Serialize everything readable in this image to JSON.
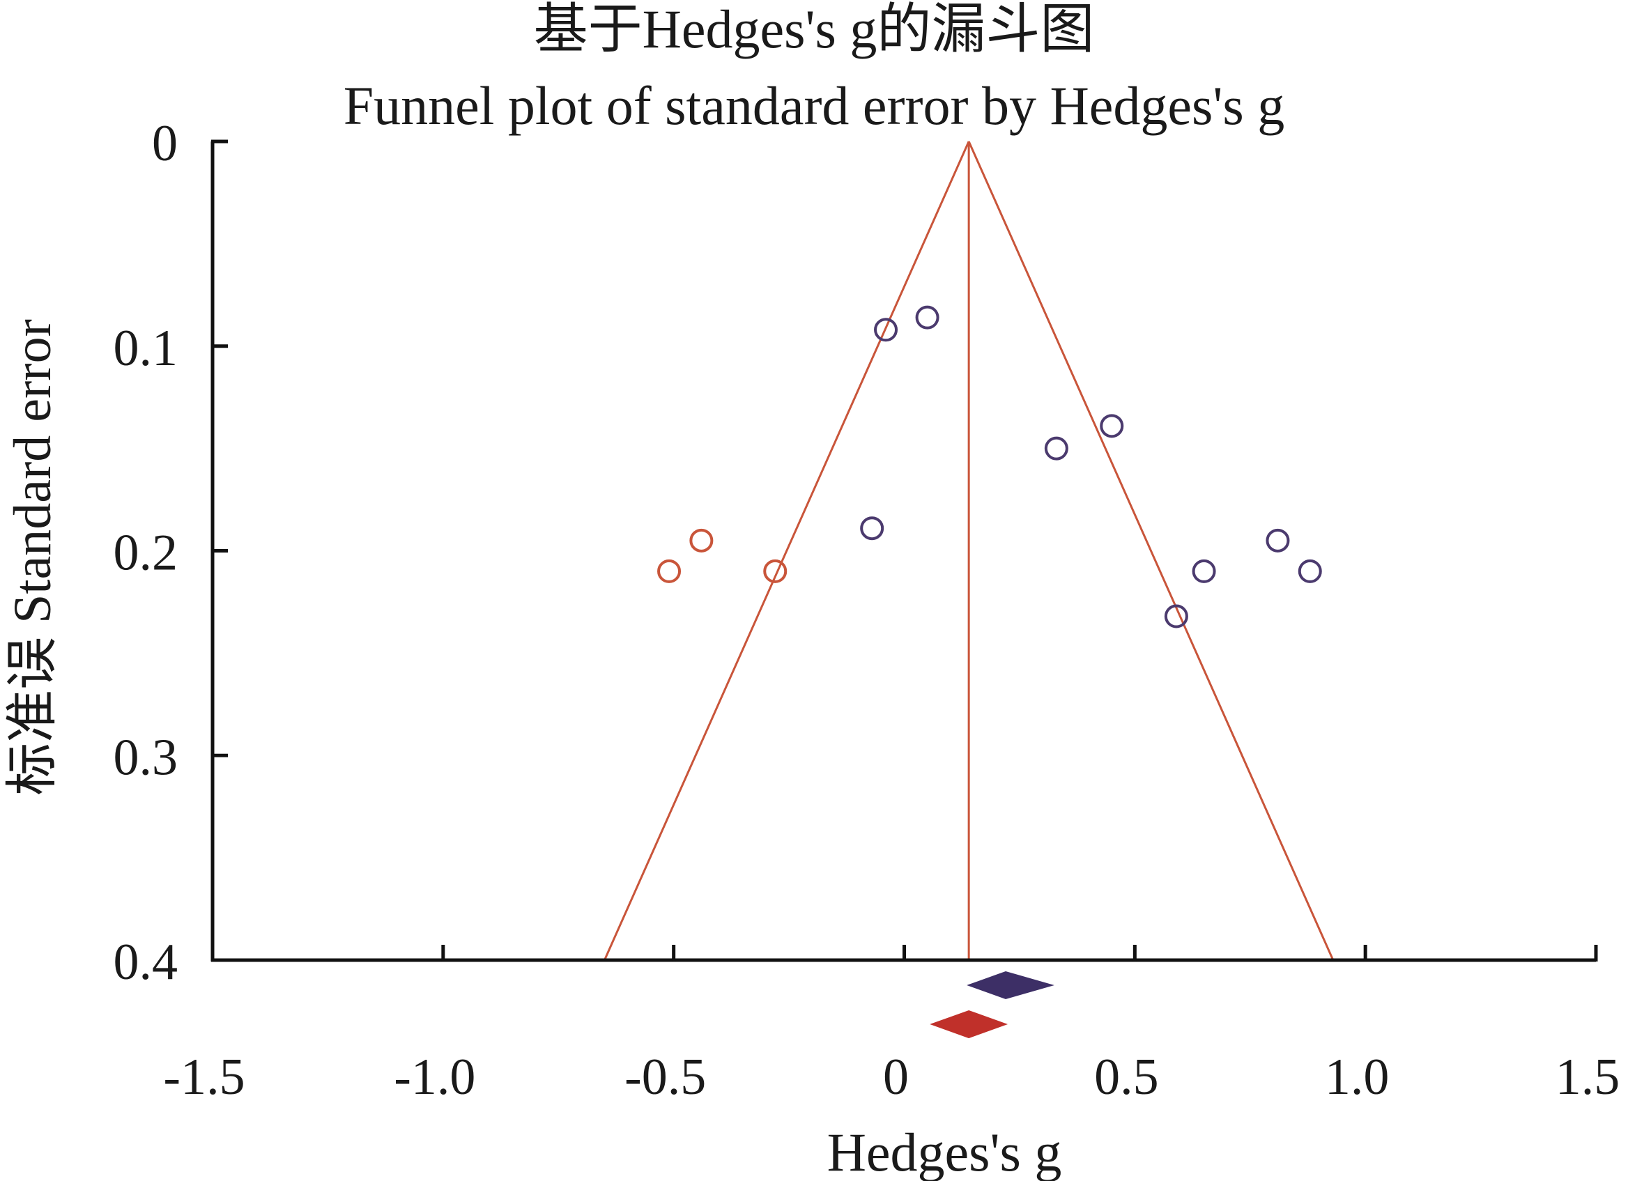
{
  "chart_data": {
    "type": "scatter",
    "title": "基于Hedges's g的漏斗图",
    "subtitle": "Funnel plot of standard error by Hedges's g",
    "xlabel": "Hedges's g",
    "ylabel": "标准误 Standard error",
    "xlim": [
      -1.5,
      1.5
    ],
    "ylim": [
      0,
      0.4
    ],
    "y_reversed": true,
    "x_ticks": [
      "-1.5",
      "-1.0",
      "-0.5",
      "0",
      "0.5",
      "1.0",
      "1.5"
    ],
    "x_tick_values": [
      -1.5,
      -1.0,
      -0.5,
      0,
      0.5,
      1.0,
      1.5
    ],
    "y_ticks": [
      "0",
      "0.1",
      "0.2",
      "0.3",
      "0.4"
    ],
    "y_tick_values": [
      0,
      0.1,
      0.2,
      0.3,
      0.4
    ],
    "grid": false,
    "legend": "none",
    "pooled_effect": 0.14,
    "funnel_at_ylim": [
      -0.65,
      0.93
    ],
    "series": [
      {
        "role": "observed",
        "color": "#4b3a6e",
        "points": [
          {
            "x": -0.04,
            "y": 0.092
          },
          {
            "x": 0.05,
            "y": 0.086
          },
          {
            "x": -0.07,
            "y": 0.189
          },
          {
            "x": 0.33,
            "y": 0.15
          },
          {
            "x": 0.45,
            "y": 0.139
          },
          {
            "x": 0.65,
            "y": 0.21
          },
          {
            "x": 0.59,
            "y": 0.232
          },
          {
            "x": 0.81,
            "y": 0.195
          },
          {
            "x": 0.88,
            "y": 0.21
          }
        ]
      },
      {
        "role": "imputed",
        "color": "#c9553a",
        "points": [
          {
            "x": -0.51,
            "y": 0.21
          },
          {
            "x": -0.44,
            "y": 0.195
          },
          {
            "x": -0.28,
            "y": 0.21
          }
        ]
      }
    ],
    "summary_diamonds": [
      {
        "role": "observed",
        "color": "#3d2f66",
        "center": 0.22,
        "low": 0.14,
        "high": 0.32
      },
      {
        "role": "adjusted",
        "color": "#c0302a",
        "center": 0.14,
        "low": 0.06,
        "high": 0.22
      }
    ],
    "funnel_color": "#c9553a"
  }
}
